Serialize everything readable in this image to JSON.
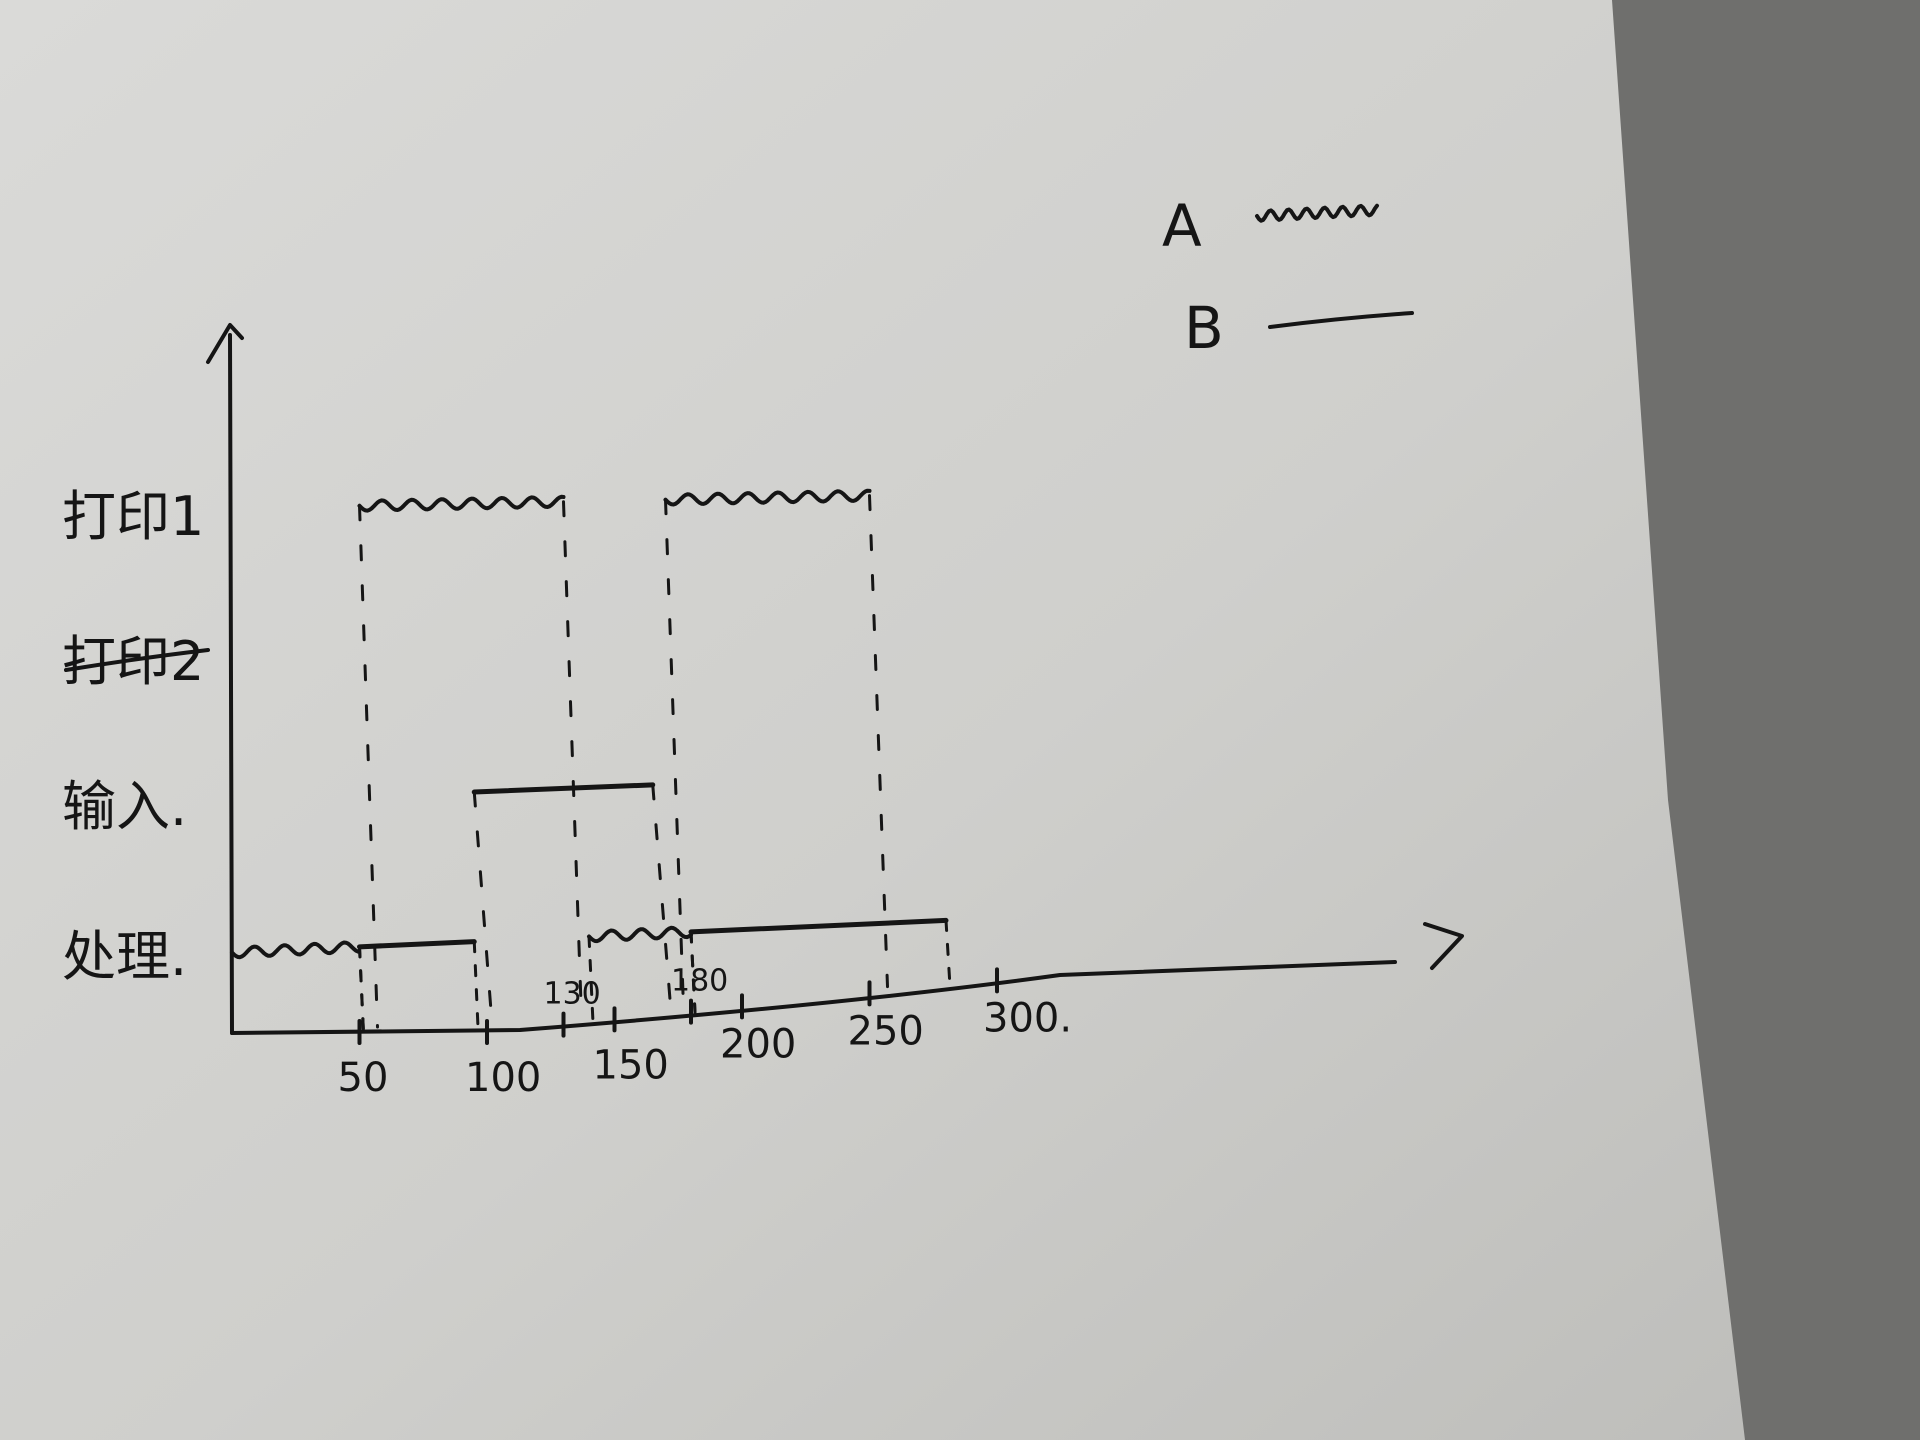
{
  "chart_data": {
    "type": "timeline",
    "title": "",
    "xlabel": "",
    "ylabel": "",
    "x_ticks": [
      {
        "value": 50,
        "label": "50"
      },
      {
        "value": 100,
        "label": "100"
      },
      {
        "value": 130,
        "label": "130"
      },
      {
        "value": 150,
        "label": "150"
      },
      {
        "value": 180,
        "label": "180"
      },
      {
        "value": 200,
        "label": "200"
      },
      {
        "value": 250,
        "label": "250"
      },
      {
        "value": 300,
        "label": "300."
      }
    ],
    "xlim": [
      0,
      340
    ],
    "lanes": [
      {
        "label": "打印1",
        "key": "print1"
      },
      {
        "label": "打印2",
        "key": "print2",
        "crossed_out": true
      },
      {
        "label": "输入.",
        "key": "input"
      },
      {
        "label": "处理.",
        "key": "process"
      }
    ],
    "legend": [
      {
        "name": "A",
        "style": "wavy"
      },
      {
        "name": "B",
        "style": "solid"
      }
    ],
    "series": [
      {
        "name": "A",
        "segments": [
          {
            "lane": "process",
            "start": 0,
            "end": 50
          },
          {
            "lane": "print1",
            "start": 50,
            "end": 130
          },
          {
            "lane": "process",
            "start": 140,
            "end": 180
          },
          {
            "lane": "print1",
            "start": 170,
            "end": 250
          }
        ]
      },
      {
        "name": "B",
        "segments": [
          {
            "lane": "process",
            "start": 50,
            "end": 95
          },
          {
            "lane": "input",
            "start": 95,
            "end": 165
          },
          {
            "lane": "process",
            "start": 180,
            "end": 280
          }
        ]
      }
    ],
    "grid": false,
    "legend_position": "top-right",
    "ink_color": "#151515",
    "paper_color": "#cfcfcc",
    "background_color": "#6f6f6d"
  }
}
